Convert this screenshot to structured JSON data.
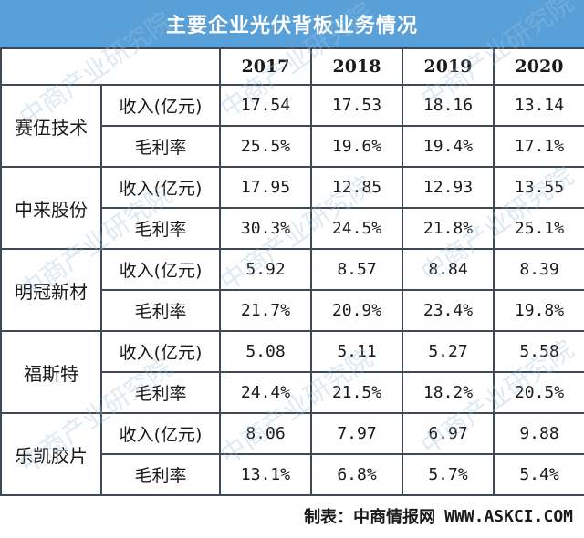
{
  "title": "主要企业光伏背板业务情况",
  "colors": {
    "header": "#5aa0d8",
    "border": "#3f4a55",
    "watermark": "#9fc3e0"
  },
  "chart_data": {
    "type": "table",
    "title": "主要企业光伏背板业务情况",
    "columns": [
      "2017",
      "2018",
      "2019",
      "2020"
    ],
    "rows": [
      {
        "company": "赛伍技术",
        "metrics": [
          {
            "label": "收入(亿元)",
            "values": [
              "17.54",
              "17.53",
              "18.16",
              "13.14"
            ]
          },
          {
            "label": "毛利率",
            "values": [
              "25.5%",
              "19.6%",
              "19.4%",
              "17.1%"
            ]
          }
        ]
      },
      {
        "company": "中来股份",
        "metrics": [
          {
            "label": "收入(亿元)",
            "values": [
              "17.95",
              "12.85",
              "12.93",
              "13.55"
            ]
          },
          {
            "label": "毛利率",
            "values": [
              "30.3%",
              "24.5%",
              "21.8%",
              "25.1%"
            ]
          }
        ]
      },
      {
        "company": "明冠新材",
        "metrics": [
          {
            "label": "收入(亿元)",
            "values": [
              "5.92",
              "8.57",
              "8.84",
              "8.39"
            ]
          },
          {
            "label": "毛利率",
            "values": [
              "21.7%",
              "20.9%",
              "23.4%",
              "19.8%"
            ]
          }
        ]
      },
      {
        "company": "福斯特",
        "metrics": [
          {
            "label": "收入(亿元)",
            "values": [
              "5.08",
              "5.11",
              "5.27",
              "5.58"
            ]
          },
          {
            "label": "毛利率",
            "values": [
              "24.4%",
              "21.5%",
              "18.2%",
              "20.5%"
            ]
          }
        ]
      },
      {
        "company": "乐凯胶片",
        "metrics": [
          {
            "label": "收入(亿元)",
            "values": [
              "8.06",
              "7.97",
              "6.97",
              "9.88"
            ]
          },
          {
            "label": "毛利率",
            "values": [
              "13.1%",
              "6.8%",
              "5.7%",
              "5.4%"
            ]
          }
        ]
      }
    ]
  },
  "footer": {
    "label": "制表：中商情报网",
    "source": "WWW.ASKCI.COM"
  },
  "watermark": {
    "text": "中商产业研究院"
  }
}
